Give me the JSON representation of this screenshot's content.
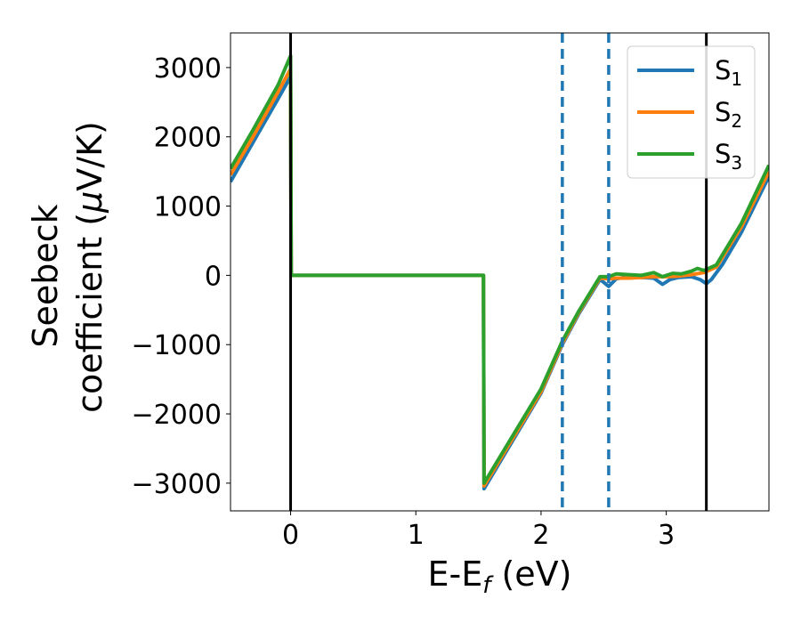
{
  "chart_data": {
    "type": "line",
    "xlabel_main": "E-E",
    "xlabel_sub": "f",
    "xlabel_unit": " (eV)",
    "ylabel_line1": "Seebeck",
    "ylabel_line2_text": "coefficient  (",
    "ylabel_mu": "μ",
    "ylabel_line2_unit": "V/K)",
    "xlim": [
      -0.48,
      3.82
    ],
    "ylim": [
      -3400,
      3500
    ],
    "xticks": [
      {
        "value": 0,
        "label": "0"
      },
      {
        "value": 1,
        "label": "1"
      },
      {
        "value": 2,
        "label": "2"
      },
      {
        "value": 3,
        "label": "3"
      }
    ],
    "yticks": [
      {
        "value": 3000,
        "label": "3000"
      },
      {
        "value": 2000,
        "label": "2000"
      },
      {
        "value": 1000,
        "label": "1000"
      },
      {
        "value": 0,
        "label": "0"
      },
      {
        "value": -1000,
        "label": "−1000"
      },
      {
        "value": -2000,
        "label": "−2000"
      },
      {
        "value": -3000,
        "label": "−3000"
      }
    ],
    "vlines_solid": [
      0,
      3.32
    ],
    "vlines_dashed": [
      2.17,
      2.54
    ],
    "legend_position": "top-right",
    "series": [
      {
        "name": "S",
        "sub": "1",
        "color": "#1f77b4",
        "points": [
          [
            -0.48,
            1350
          ],
          [
            -0.3,
            1920
          ],
          [
            -0.1,
            2550
          ],
          [
            0,
            2870
          ],
          [
            0.005,
            0
          ],
          [
            1.54,
            0
          ],
          [
            1.545,
            -3080
          ],
          [
            2.0,
            -1700
          ],
          [
            2.17,
            -1000
          ],
          [
            2.3,
            -560
          ],
          [
            2.47,
            -60
          ],
          [
            2.5,
            -100
          ],
          [
            2.54,
            -160
          ],
          [
            2.6,
            -50
          ],
          [
            2.7,
            -20
          ],
          [
            2.8,
            -30
          ],
          [
            2.9,
            -40
          ],
          [
            2.97,
            -130
          ],
          [
            3.03,
            -60
          ],
          [
            3.1,
            -30
          ],
          [
            3.2,
            -20
          ],
          [
            3.27,
            -60
          ],
          [
            3.32,
            -120
          ],
          [
            3.36,
            -60
          ],
          [
            3.45,
            160
          ],
          [
            3.6,
            620
          ],
          [
            3.82,
            1430
          ]
        ]
      },
      {
        "name": "S",
        "sub": "2",
        "color": "#ff7f0e",
        "points": [
          [
            -0.48,
            1450
          ],
          [
            -0.3,
            2000
          ],
          [
            -0.1,
            2650
          ],
          [
            0,
            2980
          ],
          [
            0.005,
            0
          ],
          [
            1.54,
            0
          ],
          [
            1.545,
            -3040
          ],
          [
            2.0,
            -1680
          ],
          [
            2.17,
            -980
          ],
          [
            2.3,
            -540
          ],
          [
            2.47,
            -40
          ],
          [
            2.54,
            -50
          ],
          [
            2.6,
            -40
          ],
          [
            2.7,
            -40
          ],
          [
            2.8,
            -30
          ],
          [
            2.9,
            -20
          ],
          [
            3.0,
            -20
          ],
          [
            3.1,
            -10
          ],
          [
            3.2,
            10
          ],
          [
            3.3,
            40
          ],
          [
            3.4,
            120
          ],
          [
            3.6,
            700
          ],
          [
            3.82,
            1500
          ]
        ]
      },
      {
        "name": "S",
        "sub": "3",
        "color": "#2ca02c",
        "points": [
          [
            -0.48,
            1540
          ],
          [
            -0.3,
            2100
          ],
          [
            -0.1,
            2750
          ],
          [
            0,
            3170
          ],
          [
            0.005,
            0
          ],
          [
            1.54,
            0
          ],
          [
            1.545,
            -3000
          ],
          [
            2.0,
            -1640
          ],
          [
            2.17,
            -950
          ],
          [
            2.3,
            -520
          ],
          [
            2.47,
            -20
          ],
          [
            2.54,
            -20
          ],
          [
            2.6,
            20
          ],
          [
            2.7,
            10
          ],
          [
            2.8,
            0
          ],
          [
            2.9,
            40
          ],
          [
            2.97,
            -20
          ],
          [
            3.05,
            30
          ],
          [
            3.12,
            20
          ],
          [
            3.2,
            60
          ],
          [
            3.25,
            100
          ],
          [
            3.3,
            70
          ],
          [
            3.4,
            150
          ],
          [
            3.6,
            750
          ],
          [
            3.82,
            1590
          ]
        ]
      }
    ]
  }
}
